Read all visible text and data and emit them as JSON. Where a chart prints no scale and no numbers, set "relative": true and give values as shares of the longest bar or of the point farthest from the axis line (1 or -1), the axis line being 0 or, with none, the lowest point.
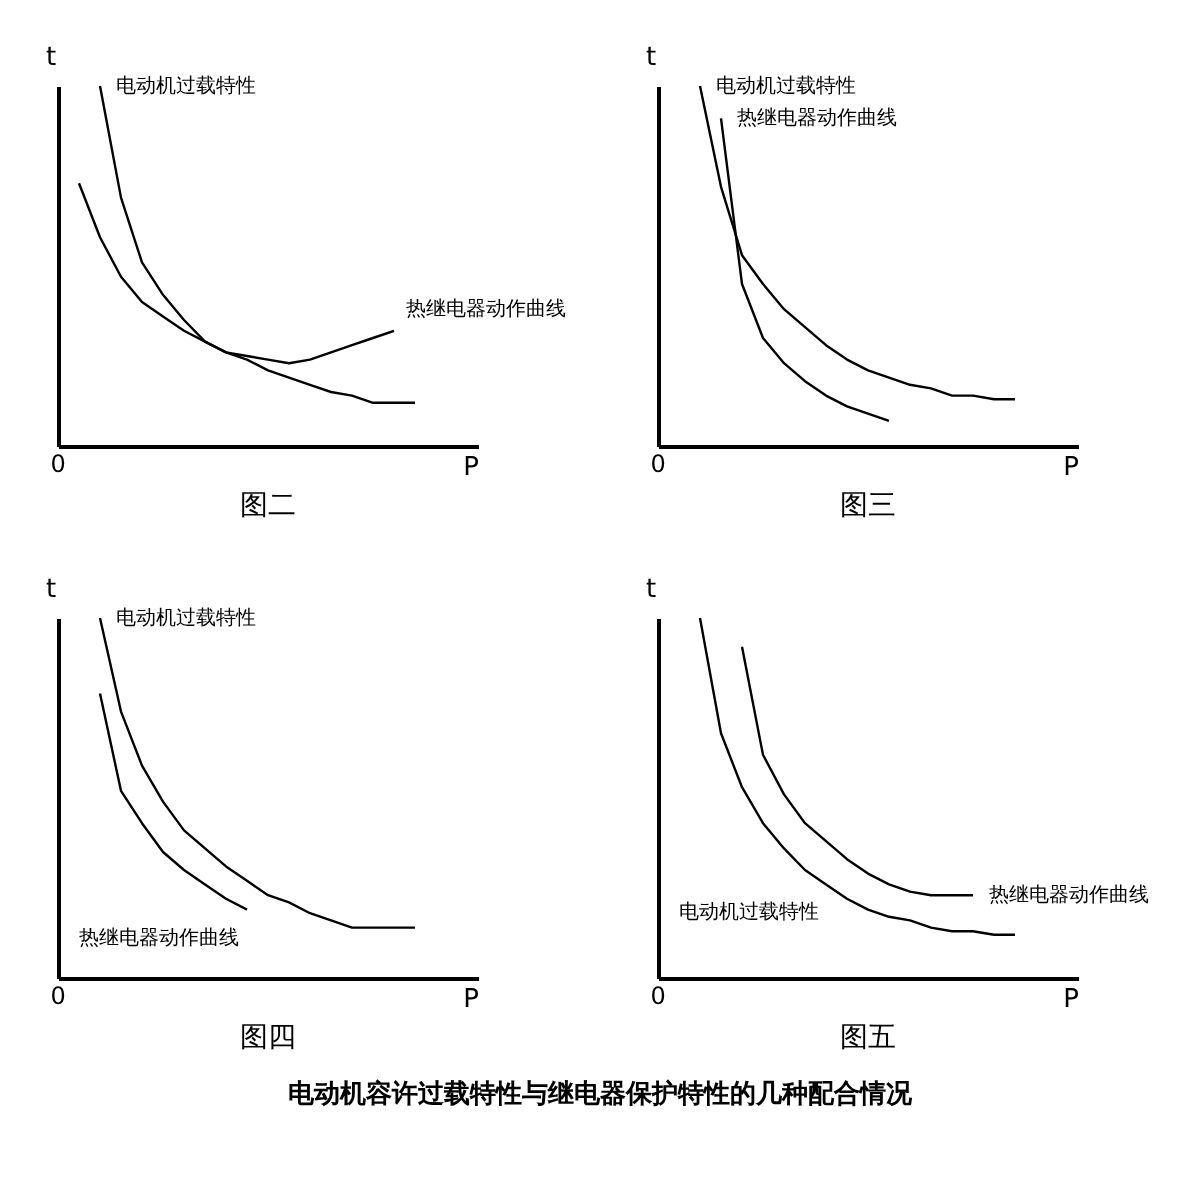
{
  "chart_data": [
    {
      "type": "line",
      "title": "图二",
      "xlabel": "P",
      "ylabel": "t",
      "relative": true,
      "annotations": [
        "0"
      ],
      "categories": [
        null,
        null,
        null,
        null,
        null,
        null,
        null,
        null,
        null,
        null,
        null,
        null,
        null,
        null,
        null,
        null,
        null,
        null,
        null,
        null,
        null
      ],
      "series": [
        {
          "name": "电动机过载特性",
          "color": "#000000",
          "values": [
            null,
            null,
            1,
            0.69,
            0.51,
            0.42,
            0.35,
            0.29,
            0.26,
            0.24,
            0.21,
            0.19,
            0.17,
            0.15,
            0.14,
            0.12,
            0.12,
            0.12,
            null,
            null,
            null
          ]
        },
        {
          "name": "热继电器动作曲线",
          "color": "#000000",
          "values": [
            null,
            0.73,
            0.58,
            0.47,
            0.4,
            0.36,
            0.32,
            0.29,
            0.26,
            0.25,
            0.24,
            0.23,
            0.24,
            0.26,
            0.28,
            0.3,
            0.32,
            null,
            null,
            null,
            null
          ]
        }
      ]
    },
    {
      "type": "line",
      "title": "图三",
      "xlabel": "P",
      "ylabel": "t",
      "relative": true,
      "annotations": [
        "0"
      ],
      "categories": [
        null,
        null,
        null,
        null,
        null,
        null,
        null,
        null,
        null,
        null,
        null,
        null,
        null,
        null,
        null,
        null,
        null,
        null,
        null,
        null,
        null
      ],
      "series": [
        {
          "name": "电动机过载特性",
          "color": "#000000",
          "values": [
            null,
            null,
            1,
            0.72,
            0.53,
            0.45,
            0.38,
            0.33,
            0.28,
            0.24,
            0.21,
            0.19,
            0.17,
            0.16,
            0.14,
            0.14,
            0.13,
            0.13,
            null,
            null,
            null
          ]
        },
        {
          "name": "热继电器动作曲线",
          "color": "#000000",
          "values": [
            null,
            null,
            null,
            0.91,
            0.45,
            0.3,
            0.23,
            0.18,
            0.14,
            0.11,
            0.09,
            0.07,
            null,
            null,
            null,
            null,
            null,
            null,
            null,
            null,
            null
          ]
        }
      ]
    },
    {
      "type": "line",
      "title": "图四",
      "xlabel": "P",
      "ylabel": "t",
      "relative": true,
      "annotations": [
        "0"
      ],
      "categories": [
        null,
        null,
        null,
        null,
        null,
        null,
        null,
        null,
        null,
        null,
        null,
        null,
        null,
        null,
        null,
        null,
        null,
        null,
        null,
        null,
        null
      ],
      "series": [
        {
          "name": "电动机过载特性",
          "color": "#000000",
          "values": [
            null,
            null,
            1,
            0.74,
            0.59,
            0.49,
            0.41,
            0.36,
            0.31,
            0.27,
            0.23,
            0.21,
            0.18,
            0.16,
            0.14,
            0.14,
            0.14,
            0.14,
            null,
            null,
            null
          ]
        },
        {
          "name": "热继电器动作曲线",
          "color": "#000000",
          "values": [
            null,
            null,
            0.79,
            0.52,
            0.43,
            0.35,
            0.3,
            0.26,
            0.22,
            0.19,
            null,
            null,
            null,
            null,
            null,
            null,
            null,
            null,
            null,
            null,
            null
          ]
        }
      ]
    },
    {
      "type": "line",
      "title": "图五",
      "xlabel": "P",
      "ylabel": "t",
      "relative": true,
      "annotations": [
        "0",
        "电动机容许过载特性与继电器保护特性的几种配合情况"
      ],
      "categories": [
        null,
        null,
        null,
        null,
        null,
        null,
        null,
        null,
        null,
        null,
        null,
        null,
        null,
        null,
        null,
        null,
        null,
        null,
        null,
        null,
        null
      ],
      "series": [
        {
          "name": "电动机过载特性",
          "color": "#000000",
          "values": [
            null,
            null,
            1,
            0.68,
            0.53,
            0.43,
            0.36,
            0.3,
            0.26,
            0.22,
            0.19,
            0.17,
            0.16,
            0.14,
            0.13,
            0.13,
            0.12,
            0.12,
            null,
            null,
            null
          ]
        },
        {
          "name": "热继电器动作曲线",
          "color": "#000000",
          "values": [
            null,
            null,
            null,
            null,
            0.92,
            0.62,
            0.51,
            0.43,
            0.38,
            0.33,
            0.29,
            0.26,
            0.24,
            0.23,
            0.23,
            0.23,
            null,
            null,
            null,
            null,
            null
          ]
        }
      ]
    }
  ]
}
